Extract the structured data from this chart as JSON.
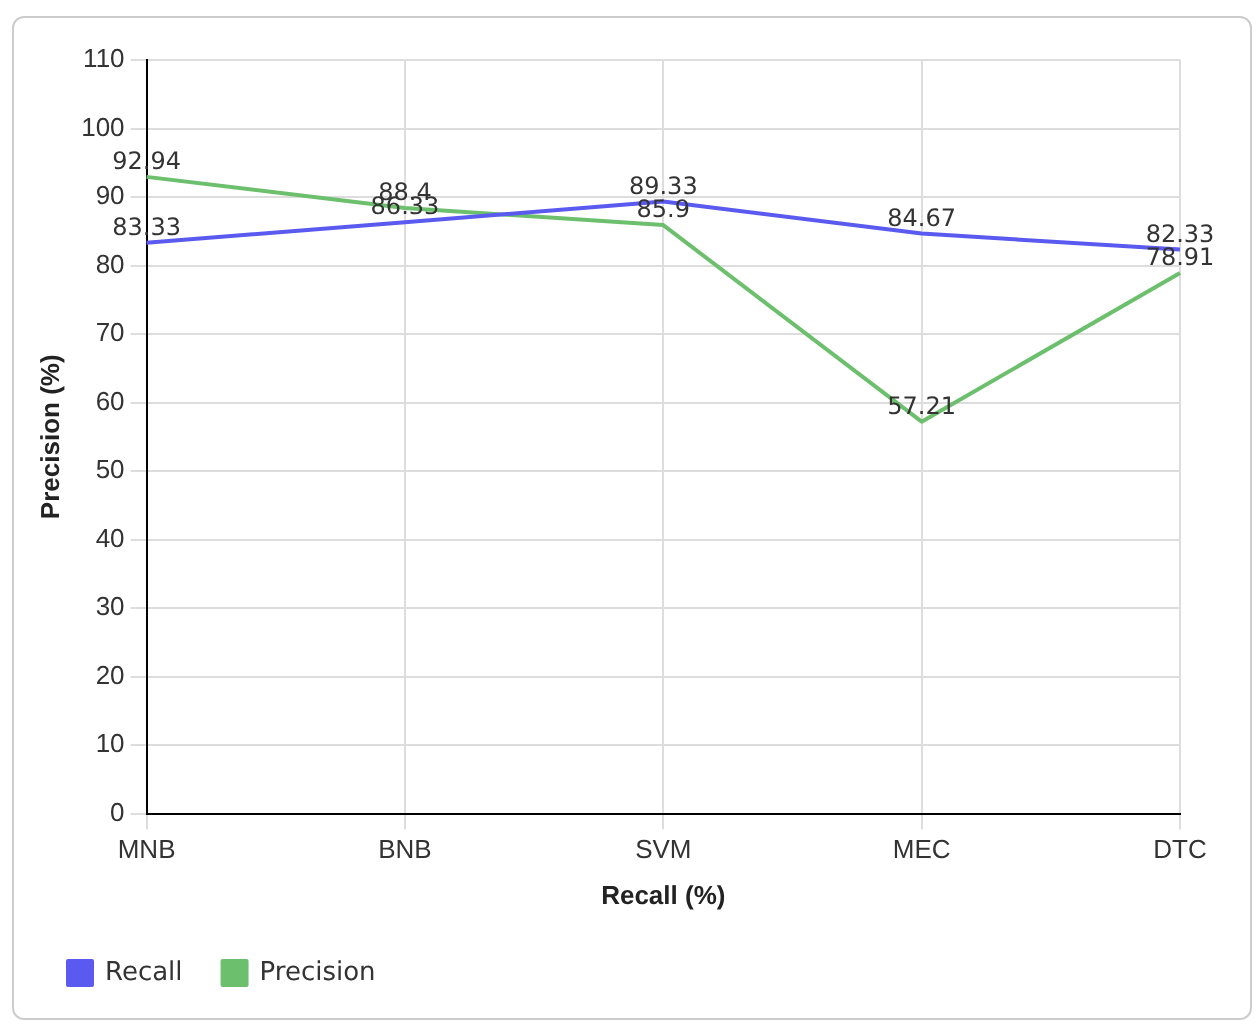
{
  "chart_data": {
    "type": "line",
    "xlabel": "Recall (%)",
    "ylabel": "Precision (%)",
    "categories": [
      "MNB",
      "BNB",
      "SVM",
      "MEC",
      "DTC"
    ],
    "series": [
      {
        "name": "Recall",
        "color": "#5a5af0",
        "values": [
          83.33,
          86.33,
          89.33,
          84.67,
          82.33
        ]
      },
      {
        "name": "Precision",
        "color": "#6cbf6c",
        "values": [
          92.94,
          88.4,
          85.9,
          57.21,
          78.91
        ]
      }
    ],
    "ylim": [
      0,
      110
    ],
    "yticks": [
      0,
      10,
      20,
      30,
      40,
      50,
      60,
      70,
      80,
      90,
      100,
      110
    ],
    "grid": true,
    "legend": "bottom left",
    "marker": "none",
    "line_style": "solid",
    "data_labels": true
  }
}
